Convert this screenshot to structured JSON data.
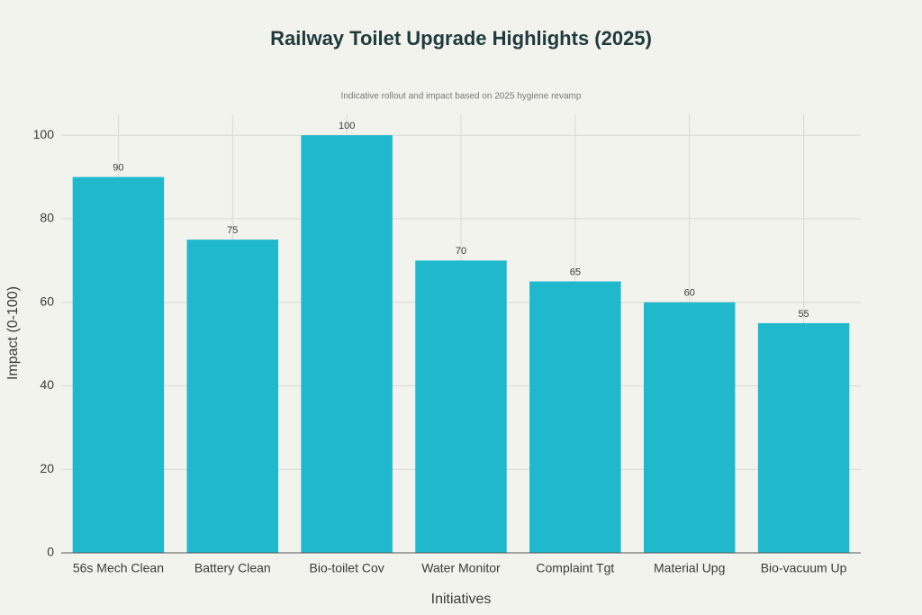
{
  "chart_data": {
    "type": "bar",
    "title": "Railway Toilet Upgrade Highlights (2025)",
    "subtitle": "Indicative rollout and impact based on 2025 hygiene revamp",
    "x_label": "Initiatives",
    "y_label": "Impact (0-100)",
    "categories": [
      "56s Mech Clean",
      "Battery Clean",
      "Bio-toilet Cov",
      "Water Monitor",
      "Complaint Tgt",
      "Material Upg",
      "Bio-vacuum Up"
    ],
    "values": [
      90,
      75,
      100,
      70,
      65,
      60,
      55
    ],
    "color": "#1fb8cd",
    "ylim": [
      0,
      105
    ],
    "yticks": [
      0,
      20,
      40,
      60,
      80,
      100
    ],
    "grid": true
  }
}
